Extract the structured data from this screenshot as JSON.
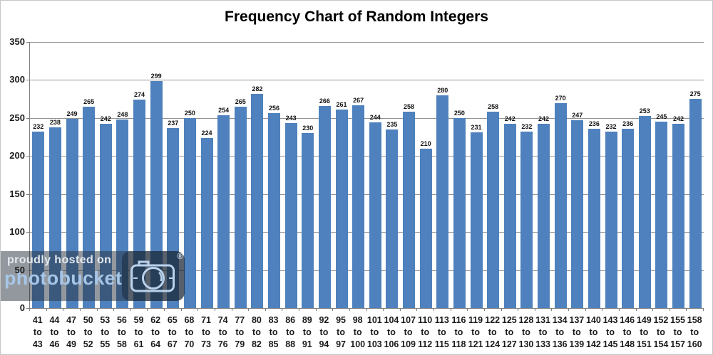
{
  "title": "Frequency Chart of Random Integers",
  "watermark": {
    "line1": "proudly hosted on",
    "line2": "photobucket",
    "registered": "®"
  },
  "chart_data": {
    "type": "bar",
    "title": "Frequency Chart of Random Integers",
    "categories": [
      "41 to 43",
      "44 to 46",
      "47 to 49",
      "50 to 52",
      "53 to 55",
      "56 to 58",
      "59 to 61",
      "62 to 64",
      "65 to 67",
      "68 to 70",
      "71 to 73",
      "74 to 76",
      "77 to 79",
      "80 to 82",
      "83 to 85",
      "86 to 88",
      "89 to 91",
      "92 to 94",
      "95 to 97",
      "98 to 100",
      "101 to 103",
      "104 to 106",
      "107 to 109",
      "110 to 112",
      "113 to 115",
      "116 to 118",
      "119 to 121",
      "122 to 124",
      "125 to 127",
      "128 to 130",
      "131 to 133",
      "134 to 136",
      "137 to 139",
      "140 to 142",
      "143 to 145",
      "146 to 148",
      "149 to 151",
      "152 to 154",
      "155 to 157",
      "158 to 160"
    ],
    "values": [
      232,
      238,
      249,
      265,
      242,
      248,
      274,
      299,
      237,
      250,
      224,
      254,
      265,
      282,
      256,
      243,
      230,
      266,
      261,
      267,
      244,
      235,
      258,
      210,
      280,
      250,
      231,
      258,
      242,
      232,
      242,
      270,
      247,
      236,
      232,
      236,
      253,
      245,
      242,
      275
    ],
    "data_labels": true,
    "xlabel": "",
    "ylabel": "",
    "ylim": [
      0,
      350
    ],
    "yticks": [
      0,
      50,
      100,
      150,
      200,
      250,
      300,
      350
    ],
    "grid": true,
    "legend": false,
    "bar_color": "#4e81bd",
    "gridline_color": "#949494"
  }
}
